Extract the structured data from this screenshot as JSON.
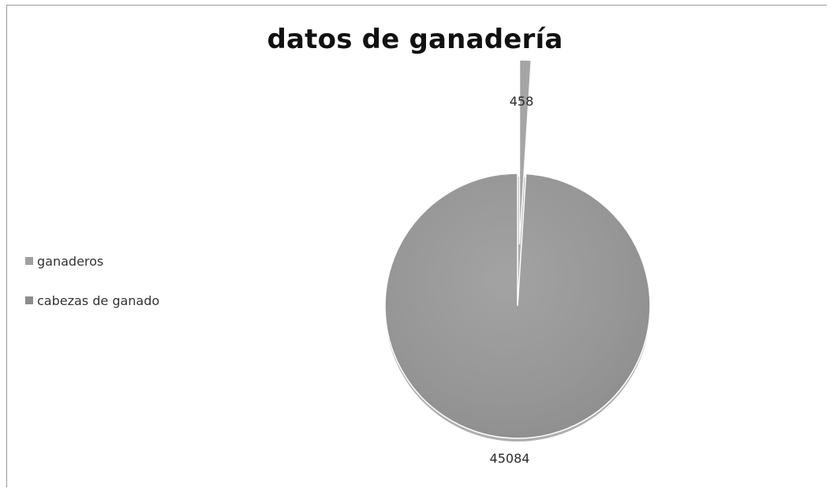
{
  "colors": {
    "slice_main": "#959595",
    "slice_small": "#a5a5a5",
    "swatch_ganaderos": "#a0a0a0",
    "swatch_cabezas": "#8c8c8c",
    "shadow": "#6e6e6e",
    "background": "#ffffff"
  },
  "chart_data": {
    "type": "pie",
    "title": "datos de ganadería",
    "categories": [
      "ganaderos",
      "cabezas de ganado"
    ],
    "values": [
      458,
      45084
    ],
    "data_labels": [
      "458",
      "45084"
    ],
    "legend_position": "left",
    "exploded_slice": "ganaderos"
  }
}
